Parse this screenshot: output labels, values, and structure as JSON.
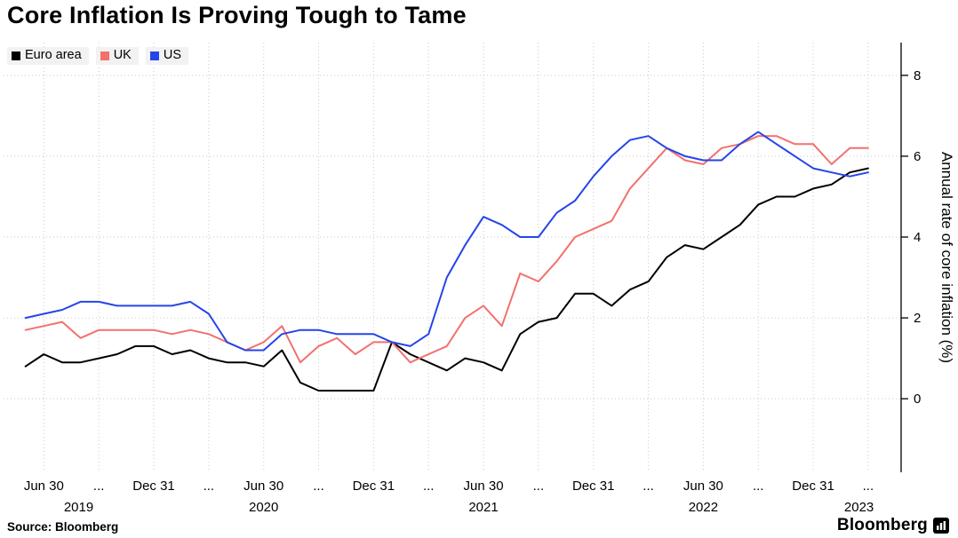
{
  "title": "Core Inflation Is Proving Tough to Tame",
  "source_label": "Source: Bloomberg",
  "brand_label": "Bloomberg",
  "legend": [
    {
      "label": "Euro area",
      "color": "#000000"
    },
    {
      "label": "UK",
      "color": "#f2716d"
    },
    {
      "label": "US",
      "color": "#2545e9"
    }
  ],
  "chart_data": {
    "type": "line",
    "title": "Core Inflation Is Proving Tough to Tame",
    "ylabel": "Annual rate of core inflation (%)",
    "xlabel": "",
    "grid": "dotted",
    "legend_position": "top-left",
    "y_axis_side": "right",
    "y_ticks": [
      0,
      2,
      4,
      6,
      8
    ],
    "ylim": [
      -1.82,
      8.81
    ],
    "xlim_months": [
      -1.2,
      47.8
    ],
    "x": [
      "2019-05",
      "2019-06",
      "2019-07",
      "2019-08",
      "2019-09",
      "2019-10",
      "2019-11",
      "2019-12",
      "2020-01",
      "2020-02",
      "2020-03",
      "2020-04",
      "2020-05",
      "2020-06",
      "2020-07",
      "2020-08",
      "2020-09",
      "2020-10",
      "2020-11",
      "2020-12",
      "2021-01",
      "2021-02",
      "2021-03",
      "2021-04",
      "2021-05",
      "2021-06",
      "2021-07",
      "2021-08",
      "2021-09",
      "2021-10",
      "2021-11",
      "2021-12",
      "2022-01",
      "2022-02",
      "2022-03",
      "2022-04",
      "2022-05",
      "2022-06",
      "2022-07",
      "2022-08",
      "2022-09",
      "2022-10",
      "2022-11",
      "2022-12",
      "2023-01",
      "2023-02",
      "2023-03"
    ],
    "series": [
      {
        "name": "Euro area",
        "color": "#000000",
        "values": [
          0.8,
          1.1,
          0.9,
          0.9,
          1.0,
          1.1,
          1.3,
          1.3,
          1.1,
          1.2,
          1.0,
          0.9,
          0.9,
          0.8,
          1.2,
          0.4,
          0.2,
          0.2,
          0.2,
          0.2,
          1.4,
          1.1,
          0.9,
          0.7,
          1.0,
          0.9,
          0.7,
          1.6,
          1.9,
          2.0,
          2.6,
          2.6,
          2.3,
          2.7,
          2.9,
          3.5,
          3.8,
          3.7,
          4.0,
          4.3,
          4.8,
          5.0,
          5.0,
          5.2,
          5.3,
          5.6,
          5.7
        ]
      },
      {
        "name": "UK",
        "color": "#f2716d",
        "values": [
          1.7,
          1.8,
          1.9,
          1.5,
          1.7,
          1.7,
          1.7,
          1.7,
          1.6,
          1.7,
          1.6,
          1.4,
          1.2,
          1.4,
          1.8,
          0.9,
          1.3,
          1.5,
          1.1,
          1.4,
          1.4,
          0.9,
          1.1,
          1.3,
          2.0,
          2.3,
          1.8,
          3.1,
          2.9,
          3.4,
          4.0,
          4.2,
          4.4,
          5.2,
          5.7,
          6.2,
          5.9,
          5.8,
          6.2,
          6.3,
          6.5,
          6.5,
          6.3,
          6.3,
          5.8,
          6.2,
          6.2
        ]
      },
      {
        "name": "US",
        "color": "#2545e9",
        "values": [
          2.0,
          2.1,
          2.2,
          2.4,
          2.4,
          2.3,
          2.3,
          2.3,
          2.3,
          2.4,
          2.1,
          1.4,
          1.2,
          1.2,
          1.6,
          1.7,
          1.7,
          1.6,
          1.6,
          1.6,
          1.4,
          1.3,
          1.6,
          3.0,
          3.8,
          4.5,
          4.3,
          4.0,
          4.0,
          4.6,
          4.9,
          5.5,
          6.0,
          6.4,
          6.5,
          6.2,
          6.0,
          5.9,
          5.9,
          6.3,
          6.6,
          6.3,
          6.0,
          5.7,
          5.6,
          5.5,
          5.6
        ]
      }
    ],
    "x_ticks": [
      {
        "m": 1,
        "label": "Jun 30"
      },
      {
        "m": 4,
        "label": "..."
      },
      {
        "m": 7,
        "label": "Dec 31"
      },
      {
        "m": 10,
        "label": "..."
      },
      {
        "m": 13,
        "label": "Jun 30"
      },
      {
        "m": 16,
        "label": "..."
      },
      {
        "m": 19,
        "label": "Dec 31"
      },
      {
        "m": 22,
        "label": "..."
      },
      {
        "m": 25,
        "label": "Jun 30"
      },
      {
        "m": 28,
        "label": "..."
      },
      {
        "m": 31,
        "label": "Dec 31"
      },
      {
        "m": 34,
        "label": "..."
      },
      {
        "m": 37,
        "label": "Jun 30"
      },
      {
        "m": 40,
        "label": "..."
      },
      {
        "m": 43,
        "label": "Dec 31"
      },
      {
        "m": 46,
        "label": "..."
      }
    ],
    "year_labels": [
      {
        "m": 2.9,
        "label": "2019"
      },
      {
        "m": 13,
        "label": "2020"
      },
      {
        "m": 25,
        "label": "2021"
      },
      {
        "m": 37,
        "label": "2022"
      },
      {
        "m": 45.5,
        "label": "2023"
      }
    ]
  }
}
